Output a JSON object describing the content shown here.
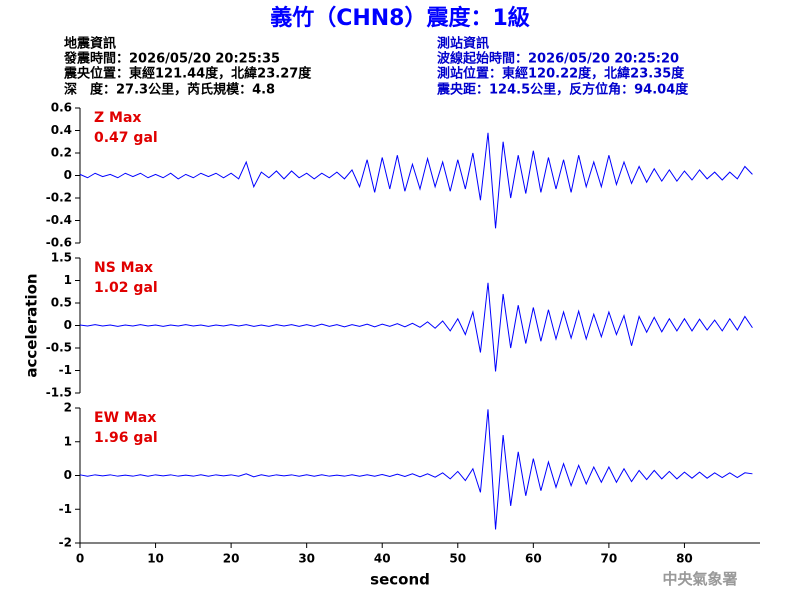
{
  "header": {
    "title": "義竹（CHN8）震度：1級",
    "left": [
      "地震資訊",
      "發震時間：2026/05/20 20:25:35",
      "震央位置：東經121.44度，北緯23.27度",
      "深　度：27.3公里，芮氏規模：4.8"
    ],
    "right": [
      "測站資訊",
      "波線起始時間：2026/05/20 20:25:20",
      "測站位置：東經120.22度，北緯23.35度",
      "震央距：124.5公里，反方位角：94.04度"
    ]
  },
  "footer": "中央氣象署",
  "chart_data": [
    {
      "type": "line",
      "label": "Z Max",
      "max_label": "0.47 gal",
      "color": "#0000ff",
      "xlim": [
        0,
        90
      ],
      "ylim": [
        -0.6,
        0.6
      ],
      "yticks": [
        0.6,
        0.4,
        0.2,
        0,
        -0.2,
        -0.4,
        -0.6
      ],
      "x": [
        0,
        1,
        2,
        3,
        4,
        5,
        6,
        7,
        8,
        9,
        10,
        11,
        12,
        13,
        14,
        15,
        16,
        17,
        18,
        19,
        20,
        21,
        22,
        23,
        24,
        25,
        26,
        27,
        28,
        29,
        30,
        31,
        32,
        33,
        34,
        35,
        36,
        37,
        38,
        39,
        40,
        41,
        42,
        43,
        44,
        45,
        46,
        47,
        48,
        49,
        50,
        51,
        52,
        53,
        54,
        55,
        56,
        57,
        58,
        59,
        60,
        61,
        62,
        63,
        64,
        65,
        66,
        67,
        68,
        69,
        70,
        71,
        72,
        73,
        74,
        75,
        76,
        77,
        78,
        79,
        80,
        81,
        82,
        83,
        84,
        85,
        86,
        87,
        88,
        89
      ],
      "values": [
        0.01,
        -0.02,
        0.02,
        -0.01,
        0.01,
        -0.02,
        0.02,
        -0.01,
        0.02,
        -0.02,
        0.01,
        -0.02,
        0.02,
        -0.03,
        0.01,
        -0.02,
        0.02,
        -0.01,
        0.02,
        -0.02,
        0.02,
        -0.03,
        0.12,
        -0.1,
        0.03,
        -0.02,
        0.04,
        -0.03,
        0.04,
        -0.02,
        0.02,
        -0.03,
        0.02,
        -0.02,
        0.03,
        -0.03,
        0.05,
        -0.1,
        0.14,
        -0.15,
        0.16,
        -0.12,
        0.18,
        -0.14,
        0.1,
        -0.12,
        0.15,
        -0.1,
        0.12,
        -0.14,
        0.14,
        -0.12,
        0.2,
        -0.22,
        0.38,
        -0.47,
        0.3,
        -0.2,
        0.18,
        -0.16,
        0.22,
        -0.15,
        0.16,
        -0.12,
        0.14,
        -0.15,
        0.18,
        -0.1,
        0.12,
        -0.1,
        0.18,
        -0.08,
        0.12,
        -0.07,
        0.08,
        -0.06,
        0.06,
        -0.05,
        0.05,
        -0.05,
        0.04,
        -0.04,
        0.05,
        -0.03,
        0.03,
        -0.04,
        0.03,
        -0.03,
        0.08,
        0.01
      ]
    },
    {
      "type": "line",
      "label": "NS Max",
      "max_label": "1.02 gal",
      "color": "#0000ff",
      "ylabel": "acceleration",
      "xlim": [
        0,
        90
      ],
      "ylim": [
        -1.5,
        1.5
      ],
      "yticks": [
        1.5,
        1,
        0.5,
        0,
        -0.5,
        -1,
        -1.5
      ],
      "x": [
        0,
        1,
        2,
        3,
        4,
        5,
        6,
        7,
        8,
        9,
        10,
        11,
        12,
        13,
        14,
        15,
        16,
        17,
        18,
        19,
        20,
        21,
        22,
        23,
        24,
        25,
        26,
        27,
        28,
        29,
        30,
        31,
        32,
        33,
        34,
        35,
        36,
        37,
        38,
        39,
        40,
        41,
        42,
        43,
        44,
        45,
        46,
        47,
        48,
        49,
        50,
        51,
        52,
        53,
        54,
        55,
        56,
        57,
        58,
        59,
        60,
        61,
        62,
        63,
        64,
        65,
        66,
        67,
        68,
        69,
        70,
        71,
        72,
        73,
        74,
        75,
        76,
        77,
        78,
        79,
        80,
        81,
        82,
        83,
        84,
        85,
        86,
        87,
        88,
        89
      ],
      "values": [
        0.01,
        -0.01,
        0.02,
        -0.01,
        0.01,
        -0.02,
        0.01,
        -0.01,
        0.02,
        -0.01,
        0.01,
        -0.02,
        0.01,
        -0.01,
        0.02,
        -0.01,
        0.01,
        -0.02,
        0.01,
        -0.01,
        0.02,
        -0.01,
        0.02,
        -0.02,
        0.01,
        -0.02,
        0.02,
        -0.01,
        0.02,
        -0.02,
        0.02,
        -0.02,
        0.03,
        -0.02,
        0.02,
        -0.03,
        0.02,
        -0.02,
        0.03,
        -0.03,
        0.03,
        -0.02,
        0.04,
        -0.03,
        0.05,
        -0.04,
        0.08,
        -0.06,
        0.1,
        -0.12,
        0.15,
        -0.2,
        0.3,
        -0.6,
        0.95,
        -1.02,
        0.7,
        -0.5,
        0.45,
        -0.4,
        0.4,
        -0.35,
        0.35,
        -0.3,
        0.3,
        -0.28,
        0.32,
        -0.3,
        0.25,
        -0.25,
        0.3,
        -0.2,
        0.22,
        -0.45,
        0.2,
        -0.15,
        0.18,
        -0.14,
        0.15,
        -0.12,
        0.15,
        -0.12,
        0.14,
        -0.1,
        0.12,
        -0.12,
        0.15,
        -0.1,
        0.2,
        -0.05
      ]
    },
    {
      "type": "line",
      "label": "EW Max",
      "max_label": "1.96 gal",
      "color": "#0000ff",
      "xlabel": "second",
      "xlim": [
        0,
        90
      ],
      "xticks": [
        0,
        10,
        20,
        30,
        40,
        50,
        60,
        70,
        80
      ],
      "ylim": [
        -2,
        2
      ],
      "yticks": [
        2,
        1,
        0,
        -1,
        -2
      ],
      "x": [
        0,
        1,
        2,
        3,
        4,
        5,
        6,
        7,
        8,
        9,
        10,
        11,
        12,
        13,
        14,
        15,
        16,
        17,
        18,
        19,
        20,
        21,
        22,
        23,
        24,
        25,
        26,
        27,
        28,
        29,
        30,
        31,
        32,
        33,
        34,
        35,
        36,
        37,
        38,
        39,
        40,
        41,
        42,
        43,
        44,
        45,
        46,
        47,
        48,
        49,
        50,
        51,
        52,
        53,
        54,
        55,
        56,
        57,
        58,
        59,
        60,
        61,
        62,
        63,
        64,
        65,
        66,
        67,
        68,
        69,
        70,
        71,
        72,
        73,
        74,
        75,
        76,
        77,
        78,
        79,
        80,
        81,
        82,
        83,
        84,
        85,
        86,
        87,
        88,
        89
      ],
      "values": [
        0.02,
        -0.02,
        0.02,
        -0.01,
        0.02,
        -0.02,
        0.01,
        -0.02,
        0.02,
        -0.02,
        0.02,
        -0.01,
        0.02,
        -0.02,
        0.01,
        -0.02,
        0.02,
        -0.02,
        0.02,
        -0.01,
        0.02,
        -0.02,
        0.05,
        -0.04,
        0.02,
        -0.02,
        0.02,
        -0.01,
        0.02,
        -0.02,
        0.02,
        -0.02,
        0.02,
        -0.02,
        0.01,
        -0.02,
        0.02,
        -0.02,
        0.02,
        -0.02,
        0.03,
        -0.03,
        0.04,
        -0.03,
        0.05,
        -0.04,
        0.05,
        -0.05,
        0.08,
        -0.1,
        0.12,
        -0.15,
        0.2,
        -0.5,
        1.96,
        -1.6,
        1.2,
        -0.9,
        0.7,
        -0.6,
        0.5,
        -0.45,
        0.4,
        -0.35,
        0.35,
        -0.3,
        0.3,
        -0.25,
        0.25,
        -0.2,
        0.25,
        -0.2,
        0.2,
        -0.18,
        0.15,
        -0.12,
        0.15,
        -0.1,
        0.12,
        -0.1,
        0.1,
        -0.08,
        0.1,
        -0.08,
        0.08,
        -0.06,
        0.08,
        -0.06,
        0.08,
        0.05
      ]
    }
  ]
}
